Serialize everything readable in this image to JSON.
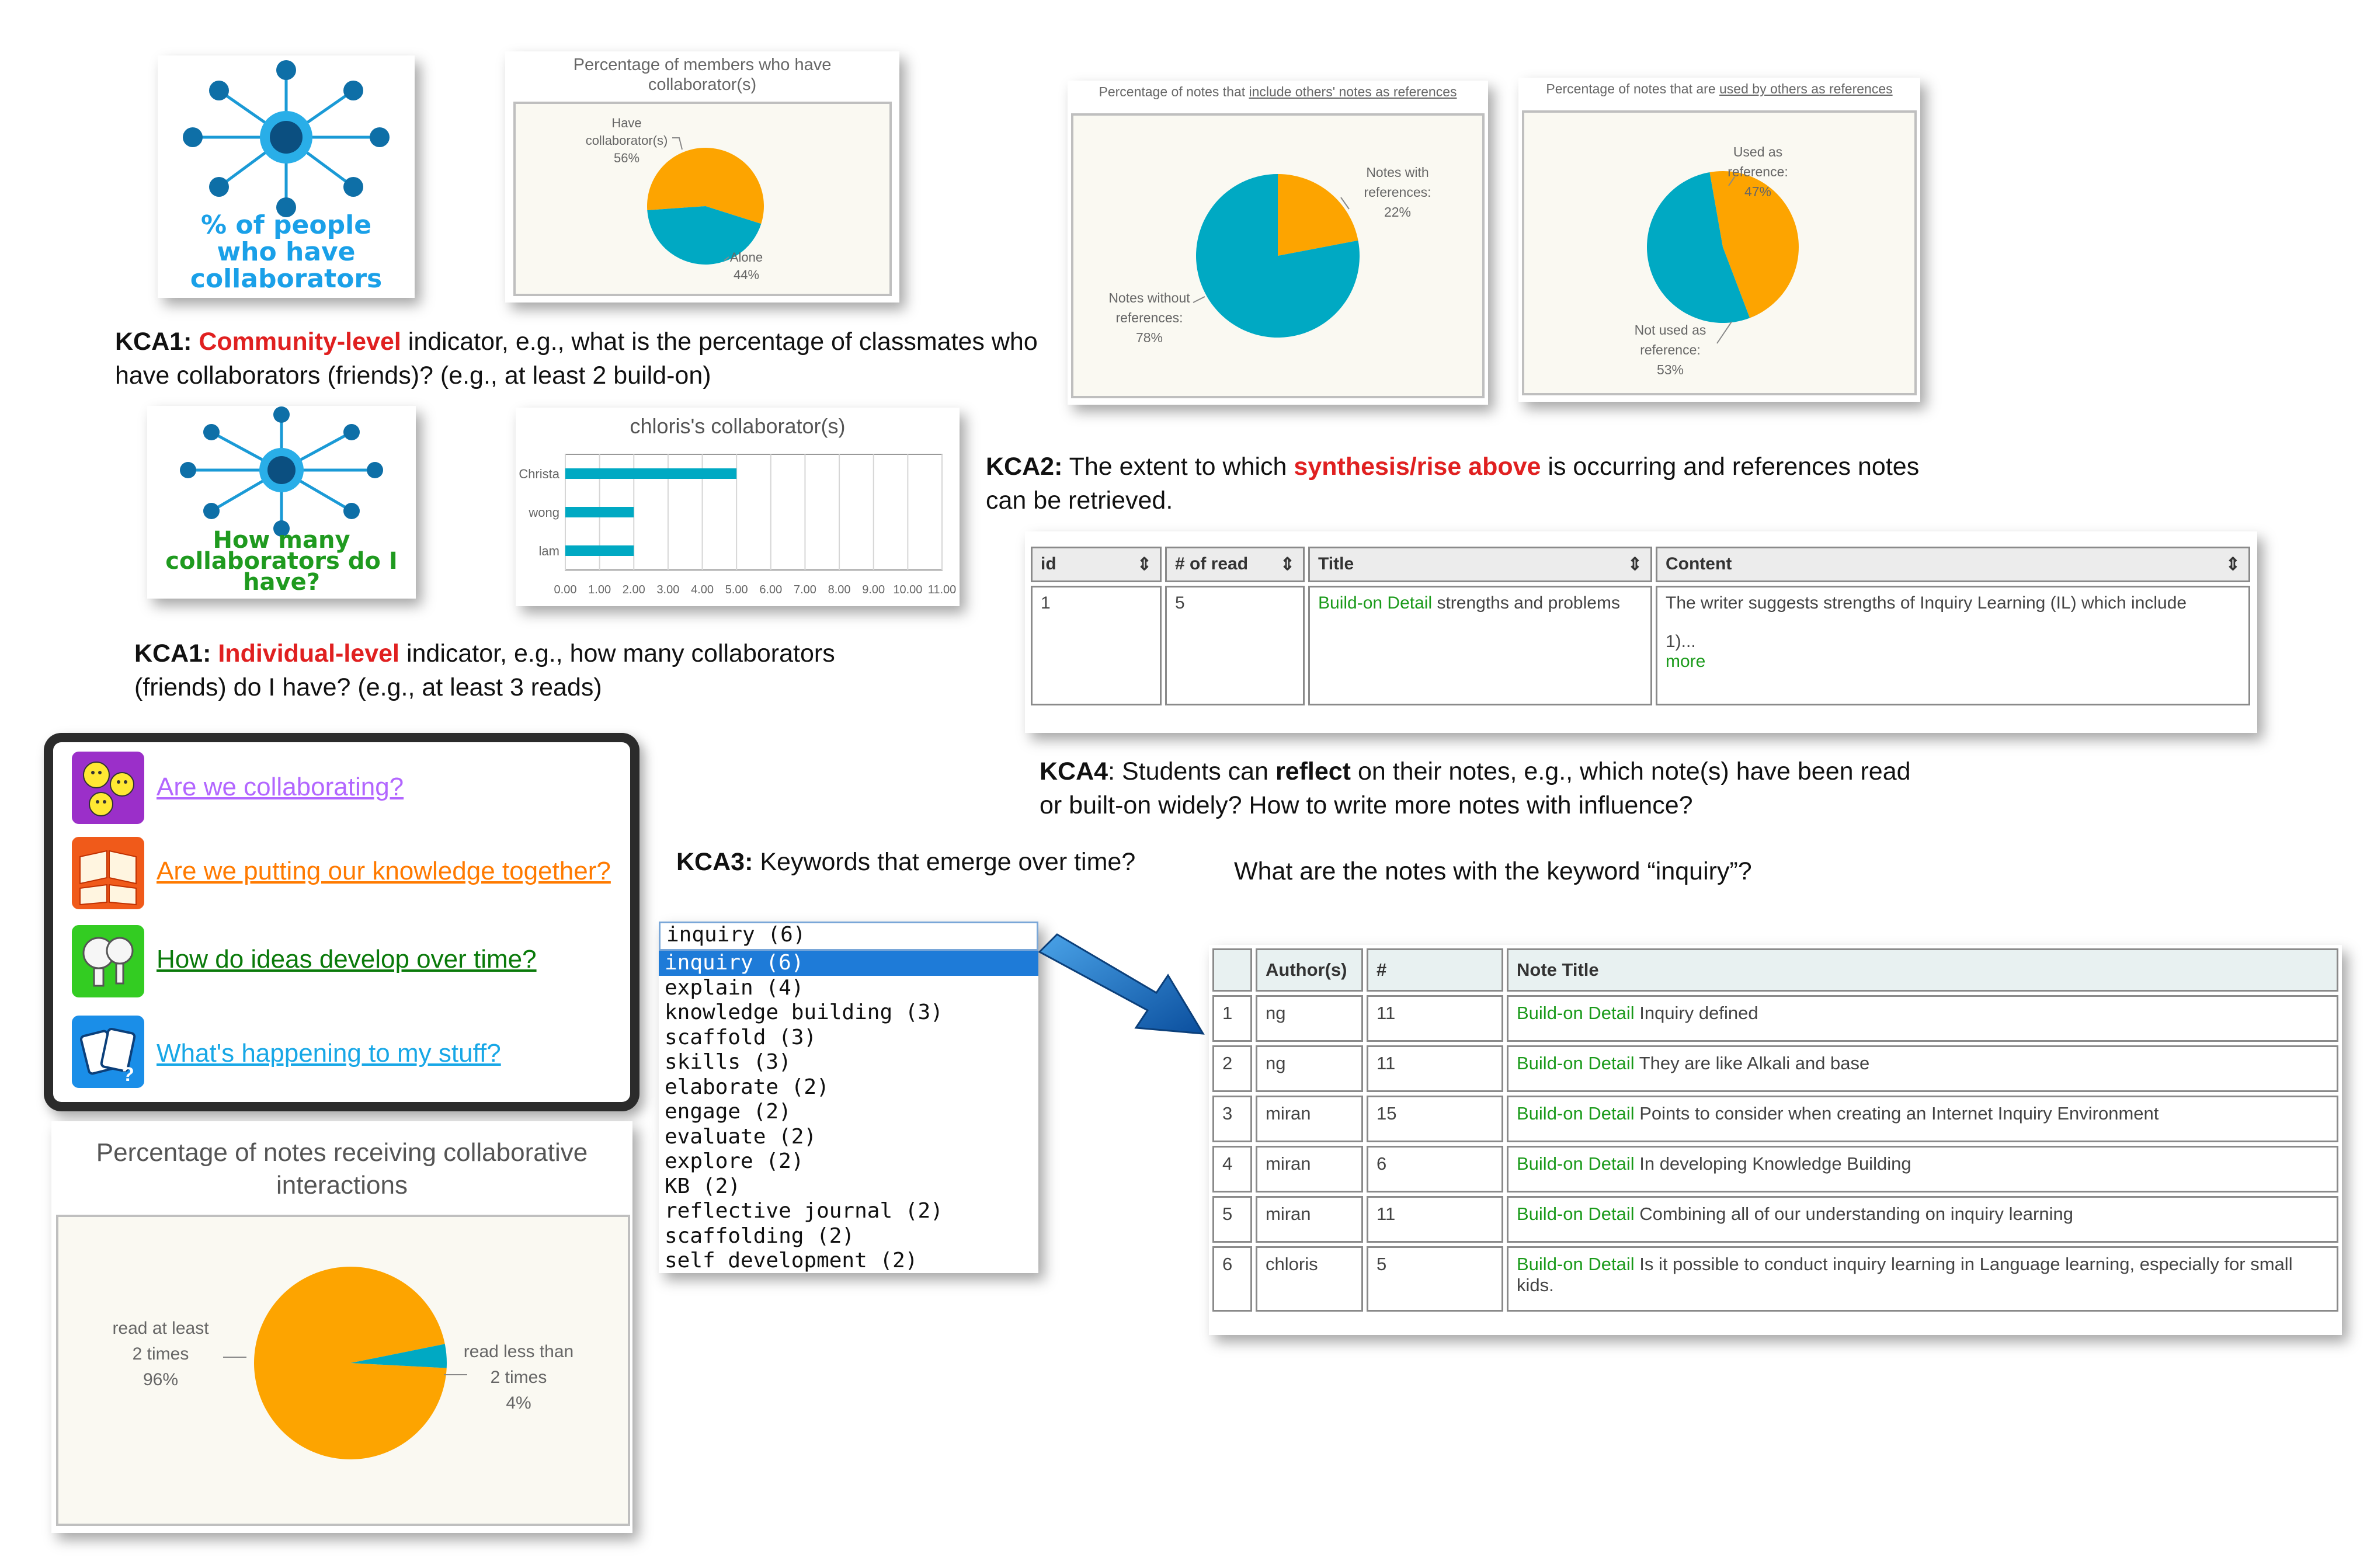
{
  "kca1_community": {
    "icon_text": "% of people who have collaborators",
    "chart": {
      "title": "Percentage of members who have collaborator(s)",
      "slices": [
        {
          "label": "Have collaborator(s)",
          "pct_label": "56%",
          "value": 56,
          "color": "#fda400"
        },
        {
          "label": "Alone",
          "pct_label": "44%",
          "value": 44,
          "color": "#00a9c3"
        }
      ]
    },
    "caption_prefix": "KCA1:",
    "caption_highlight": "Community-level",
    "caption_rest": " indicator, e.g., what is the percentage of classmates who have collaborators (friends)? (e.g., at least 2 build-on)"
  },
  "kca1_individual": {
    "icon_text": "How many collaborators do I have?",
    "chart": {
      "title": "chloris's collaborator(s)",
      "categories": [
        "Christa",
        "wong",
        "lam"
      ],
      "values": [
        5.0,
        2.0,
        2.0
      ],
      "xticks": [
        "0.00",
        "1.00",
        "2.00",
        "3.00",
        "4.00",
        "5.00",
        "6.00",
        "7.00",
        "8.00",
        "9.00",
        "10.00",
        "11.00"
      ],
      "xlim": [
        0,
        11
      ],
      "bar_color": "#00a9c3"
    },
    "caption_prefix": "KCA1:",
    "caption_highlight": "Individual-level",
    "caption_rest": " indicator, e.g., how many collaborators (friends) do I have? (e.g., at least 3 reads)"
  },
  "kca2": {
    "chart1": {
      "title_prefix": "Percentage of notes that ",
      "title_link": "include others' notes as references",
      "slices": [
        {
          "label": "Notes with references:",
          "pct_label": "22%",
          "value": 22,
          "color": "#fda400"
        },
        {
          "label": "Notes without references:",
          "pct_label": "78%",
          "value": 78,
          "color": "#00a9c3"
        }
      ]
    },
    "chart2": {
      "title_prefix": "Percentage of notes that are ",
      "title_link": "used by others as references",
      "slices": [
        {
          "label": "Used as reference:",
          "pct_label": "47%",
          "value": 47,
          "color": "#fda400"
        },
        {
          "label": "Not used as reference:",
          "pct_label": "53%",
          "value": 53,
          "color": "#00a9c3"
        }
      ]
    },
    "caption_prefix": "KCA2:",
    "caption_mid": " The extent to which ",
    "caption_highlight": "synthesis/rise above",
    "caption_rest": " is occurring and references notes can be retrieved."
  },
  "kca4": {
    "table": {
      "headers": [
        "id",
        "# of read",
        "Title",
        "Content"
      ],
      "row": {
        "id": "1",
        "reads": "5",
        "title_tag": "Build-on Detail",
        "title_rest": " strengths and problems",
        "content": "The writer suggests strengths of Inquiry Learning (IL) which include",
        "content_more_text": "1)...",
        "more_link": "more"
      }
    },
    "caption_prefix": "KCA4",
    "caption_a": ": Students can ",
    "caption_bold": "reflect",
    "caption_rest": " on their notes, e.g., which note(s) have been read or built-on widely?  How to write more notes with influence?"
  },
  "dashboard": {
    "items": [
      {
        "label": "Are we collaborating?",
        "color": "#b266ff",
        "icon": "smiley-faces-icon",
        "icon_bg": "#9b2fc9"
      },
      {
        "label": "Are we putting our knowledge together?",
        "color": "#ff7a00",
        "icon": "open-books-icon",
        "icon_bg": "#f05a1a"
      },
      {
        "label": "How do ideas develop over time?",
        "color": "#0a7a0a",
        "icon": "lightbulbs-icon",
        "icon_bg": "#33cc22"
      },
      {
        "label": "What's happening to my stuff?",
        "color": "#17a7e6",
        "icon": "cards-icon",
        "icon_bg": "#1a8ee8"
      }
    ]
  },
  "collab_chart": {
    "title": "Percentage of notes receiving collaborative interactions",
    "slices": [
      {
        "label": "read at least 2 times",
        "pct_label": "96%",
        "value": 96,
        "color": "#fda400"
      },
      {
        "label": "read less than 2 times",
        "pct_label": "4%",
        "value": 4,
        "color": "#00a9c3"
      }
    ]
  },
  "kca3": {
    "caption_prefix": "KCA3:",
    "caption_rest": " Keywords that emerge over time?",
    "question": "What are the notes with the keyword “inquiry”?",
    "keyword_input": "inquiry (6)",
    "keywords": [
      "inquiry (6)",
      "explain (4)",
      "knowledge building (3)",
      "scaffold (3)",
      "skills (3)",
      "elaborate (2)",
      "engage (2)",
      "evaluate (2)",
      "explore (2)",
      "KB (2)",
      "reflective journal (2)",
      "scaffolding (2)",
      "self development (2)"
    ],
    "selected_index": 0,
    "notes_table": {
      "headers": [
        "",
        "Author(s)",
        "#",
        "Note Title"
      ],
      "rows": [
        {
          "n": "1",
          "author": "ng",
          "reads": "11",
          "tag": "Build-on Detail",
          "title": " Inquiry defined"
        },
        {
          "n": "2",
          "author": "ng",
          "reads": "11",
          "tag": "Build-on Detail",
          "title": " They are like Alkali and base"
        },
        {
          "n": "3",
          "author": "miran",
          "reads": "15",
          "tag": "Build-on Detail",
          "title": " Points to consider when creating an Internet Inquiry Environment"
        },
        {
          "n": "4",
          "author": "miran",
          "reads": "6",
          "tag": "Build-on Detail",
          "title": " In developing Knowledge Building"
        },
        {
          "n": "5",
          "author": "miran",
          "reads": "11",
          "tag": "Build-on Detail",
          "title": " Combining all of our understanding on inquiry learning"
        },
        {
          "n": "6",
          "author": "chloris",
          "reads": "5",
          "tag": "Build-on Detail",
          "title": " Is it possible to conduct inquiry learning in Language learning, especially for small kids."
        }
      ]
    }
  }
}
